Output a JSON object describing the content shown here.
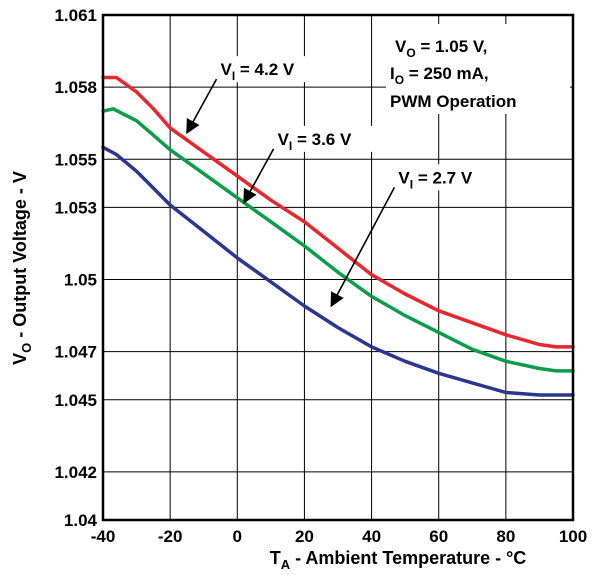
{
  "chart_data": {
    "type": "line",
    "xlabel": "T",
    "xlabel_sub": "A",
    "xlabel_rest": " - Ambient Temperature - °C",
    "ylabel": "V",
    "ylabel_sub": "O",
    "ylabel_rest": " - Output Voltage - V",
    "xlim": [
      -40,
      100
    ],
    "ylim": [
      1.04,
      1.061
    ],
    "x_ticks": [
      -40,
      -20,
      0,
      20,
      40,
      60,
      80,
      100
    ],
    "x_tick_labels": [
      "-40",
      "-20",
      "0",
      "20",
      "40",
      "60",
      "80",
      "100"
    ],
    "y_ticks": [
      1.04,
      1.042,
      1.045,
      1.047,
      1.05,
      1.053,
      1.055,
      1.058,
      1.061
    ],
    "y_tick_labels": [
      "1.04",
      "1.042",
      "1.045",
      "1.047",
      "1.05",
      "1.053",
      "1.055",
      "1.058",
      "1.061"
    ],
    "grid": true,
    "conditions": {
      "line1_main": "V",
      "line1_sub": "O",
      "line1_rest": " = 1.05 V,",
      "line2_main": "I",
      "line2_sub": "O",
      "line2_rest": " = 250 mA,",
      "line3": "PWM Operation"
    },
    "series": [
      {
        "name_main": "V",
        "name_sub": "I",
        "name_rest": " = 4.2 V",
        "color": "#e8262b",
        "x": [
          -40,
          -36,
          -30,
          -25,
          -20,
          -10,
          0,
          10,
          20,
          30,
          40,
          50,
          60,
          70,
          80,
          90,
          95,
          100
        ],
        "y": [
          1.0584,
          1.0584,
          1.0578,
          1.0571,
          1.0563,
          1.0553,
          1.0543,
          1.0533,
          1.0524,
          1.0513,
          1.0502,
          1.0494,
          1.0487,
          1.0482,
          1.0477,
          1.0473,
          1.0472,
          1.0472
        ]
      },
      {
        "name_main": "V",
        "name_sub": "I",
        "name_rest": " = 3.6 V",
        "color": "#0a9e4b",
        "x": [
          -40,
          -37,
          -30,
          -25,
          -20,
          -10,
          0,
          10,
          20,
          30,
          40,
          50,
          60,
          70,
          80,
          90,
          95,
          100
        ],
        "y": [
          1.057,
          1.0571,
          1.0566,
          1.056,
          1.0554,
          1.0544,
          1.0534,
          1.0524,
          1.0514,
          1.0503,
          1.0493,
          1.0485,
          1.0478,
          1.0471,
          1.0466,
          1.0463,
          1.0462,
          1.0462
        ]
      },
      {
        "name_main": "V",
        "name_sub": "I",
        "name_rest": " = 2.7 V",
        "color": "#2b3690",
        "x": [
          -40,
          -36,
          -30,
          -25,
          -20,
          -10,
          0,
          10,
          20,
          30,
          40,
          50,
          60,
          70,
          80,
          90,
          95,
          100
        ],
        "y": [
          1.0555,
          1.0552,
          1.0545,
          1.0538,
          1.0531,
          1.052,
          1.0509,
          1.0499,
          1.0489,
          1.048,
          1.0472,
          1.0466,
          1.0461,
          1.0457,
          1.0453,
          1.0452,
          1.0452,
          1.0452
        ]
      }
    ],
    "annotations": [
      {
        "series": 0,
        "label_x": -5,
        "label_y": 1.0585,
        "arrow_to_x": -15,
        "arrow_to_y": 1.0561
      },
      {
        "series": 1,
        "label_x": 12,
        "label_y": 1.0556,
        "arrow_to_x": 2,
        "arrow_to_y": 1.0532
      },
      {
        "series": 2,
        "label_x": 48,
        "label_y": 1.054,
        "arrow_to_x": 28,
        "arrow_to_y": 1.0489
      }
    ]
  }
}
